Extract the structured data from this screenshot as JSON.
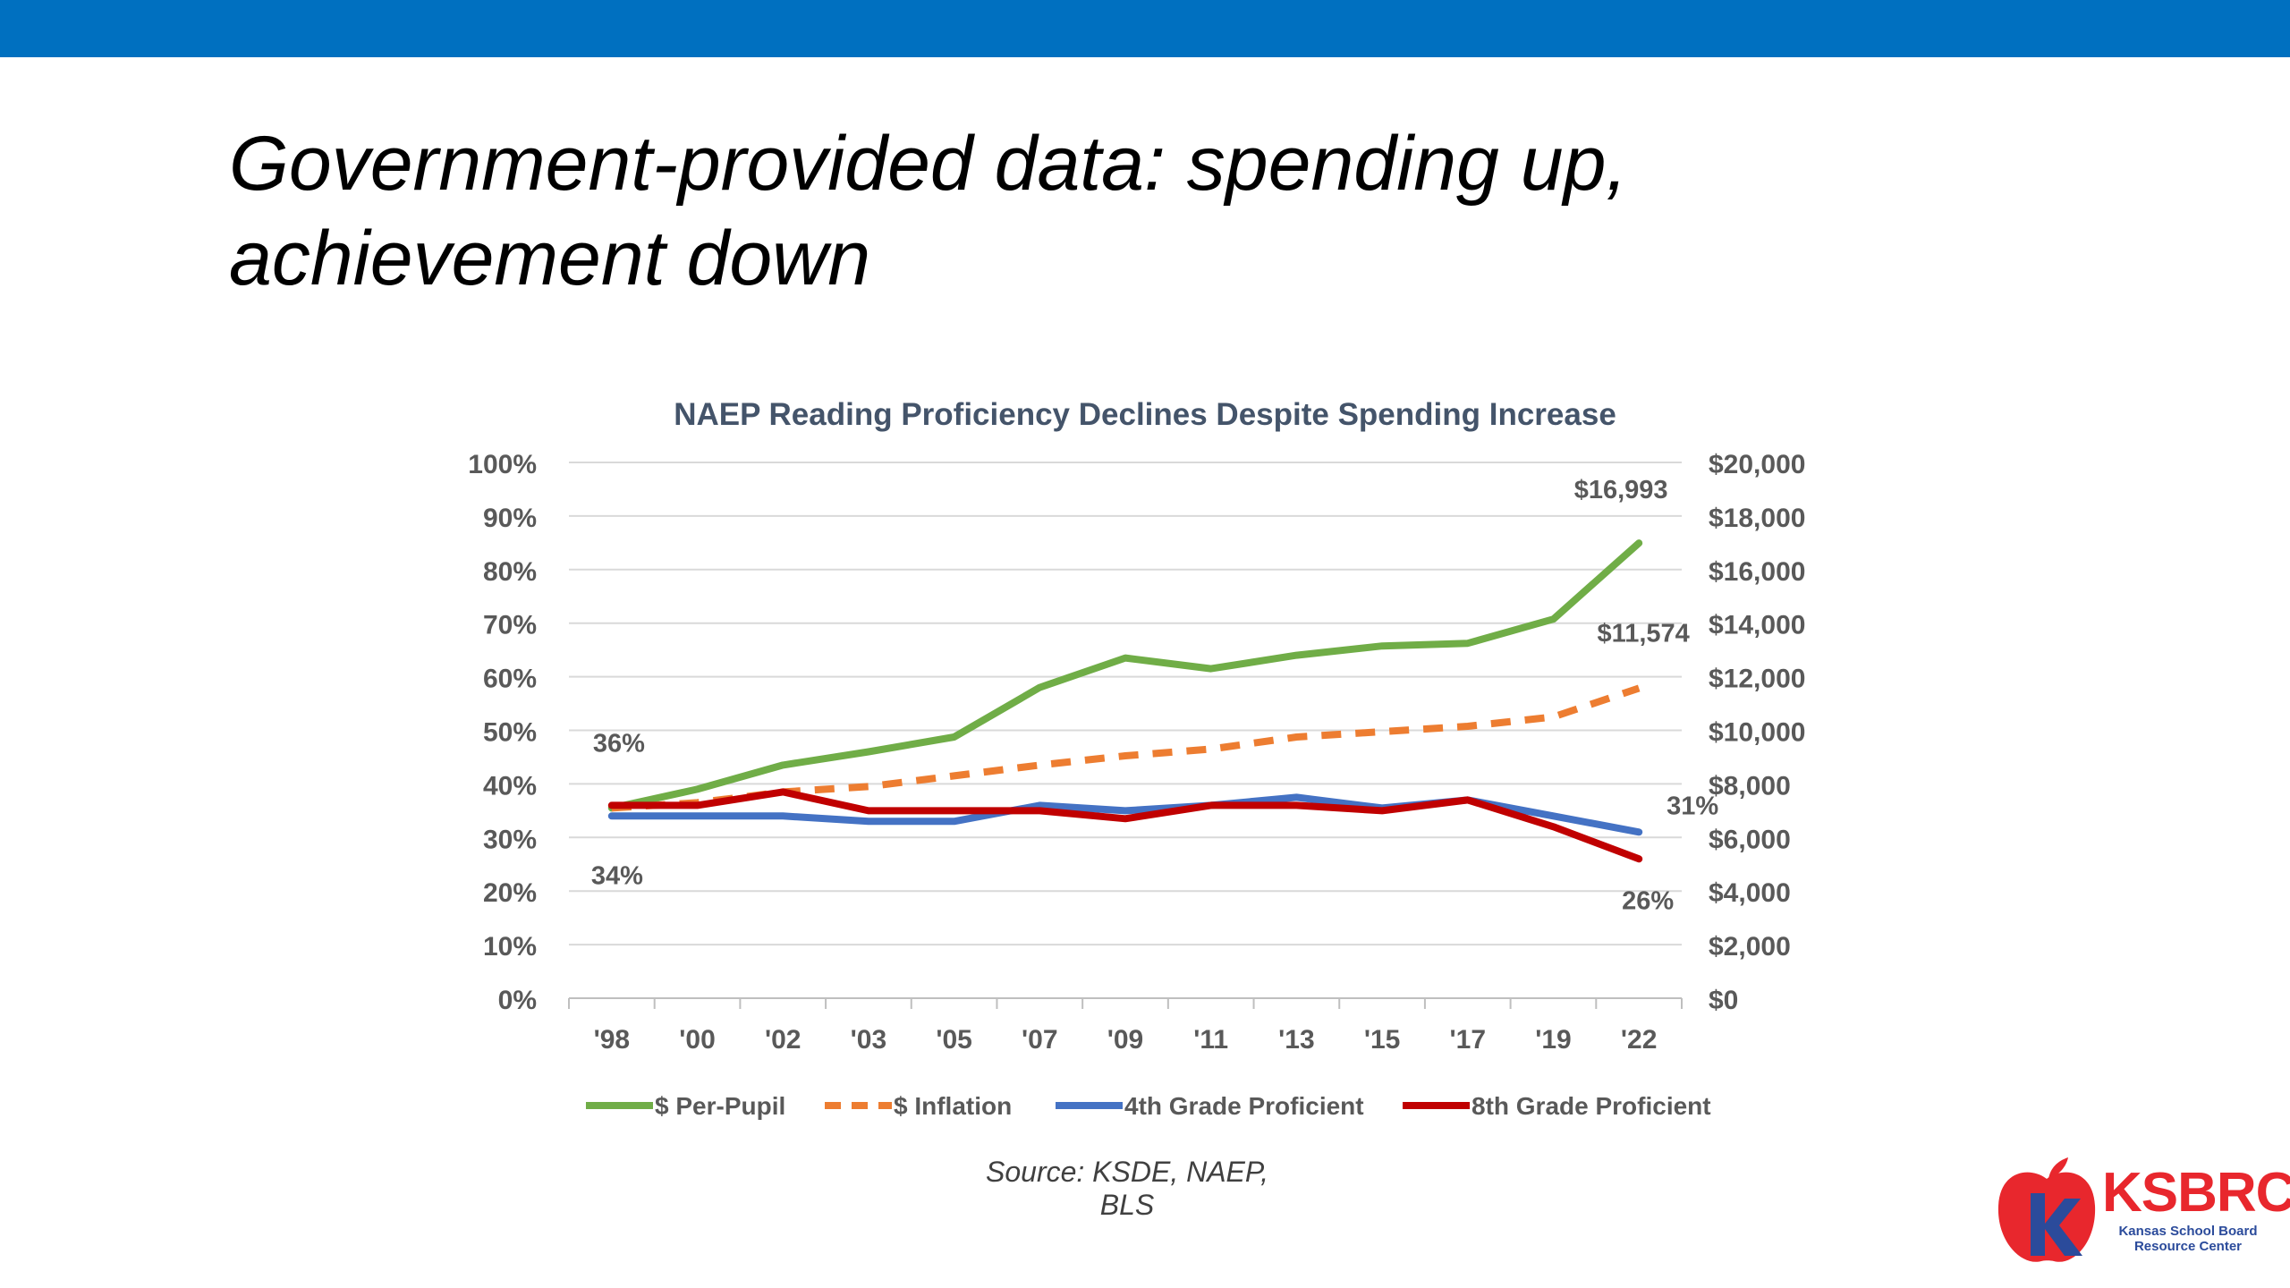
{
  "slide": {
    "title_line1": "Government-provided data: spending up,",
    "title_line2": "achievement down",
    "source": "Source: KSDE, NAEP, BLS",
    "logo_name": "KSBRC",
    "logo_subtitle": "Kansas School Board Resource Center",
    "colors": {
      "top_bar": "#0070c0",
      "logo_red": "#e8272d",
      "logo_blue": "#2b4b9b"
    }
  },
  "chart_data": {
    "type": "line",
    "title": "NAEP Reading Proficiency Declines Despite Spending Increase",
    "categories": [
      "'98",
      "'00",
      "'02",
      "'03",
      "'05",
      "'07",
      "'09",
      "'11",
      "'13",
      "'15",
      "'17",
      "'19",
      "'22"
    ],
    "y_left": {
      "range": [
        0,
        100
      ],
      "ticks": [
        "0%",
        "10%",
        "20%",
        "30%",
        "40%",
        "50%",
        "60%",
        "70%",
        "80%",
        "90%",
        "100%"
      ]
    },
    "y_right": {
      "range": [
        0,
        20000
      ],
      "ticks": [
        "$0",
        "$2,000",
        "$4,000",
        "$6,000",
        "$8,000",
        "$10,000",
        "$12,000",
        "$14,000",
        "$16,000",
        "$18,000",
        "$20,000"
      ]
    },
    "grid": true,
    "legend_position": "bottom",
    "series": [
      {
        "name": "$ Per-Pupil",
        "axis": "right",
        "color": "#70ad47",
        "dashed": false,
        "values": [
          7100,
          7800,
          8700,
          9200,
          9750,
          11600,
          12700,
          12300,
          12800,
          13150,
          13250,
          14150,
          16993
        ]
      },
      {
        "name": "$ Inflation",
        "axis": "right",
        "color": "#ed7d31",
        "dashed": true,
        "values": [
          7100,
          7300,
          7700,
          7900,
          8300,
          8700,
          9050,
          9300,
          9750,
          9950,
          10150,
          10500,
          11574
        ]
      },
      {
        "name": "4th Grade Proficient",
        "axis": "left",
        "color": "#4472c4",
        "dashed": false,
        "values": [
          34,
          34,
          34,
          33,
          33,
          36,
          35,
          36,
          37.5,
          35.5,
          37,
          34,
          31
        ]
      },
      {
        "name": "8th Grade Proficient",
        "axis": "left",
        "color": "#c00000",
        "dashed": false,
        "values": [
          36,
          36,
          38.5,
          35,
          35,
          35,
          33.5,
          36,
          36,
          35,
          37,
          32,
          26
        ]
      }
    ],
    "annotations": [
      {
        "text": "$16,993",
        "series": 0,
        "index": 12
      },
      {
        "text": "$11,574",
        "series": 1,
        "index": 12
      },
      {
        "text": "36%",
        "series": 3,
        "index": 0
      },
      {
        "text": "34%",
        "series": 2,
        "index": 0
      },
      {
        "text": "31%",
        "series": 2,
        "index": 12
      },
      {
        "text": "26%",
        "series": 3,
        "index": 12
      }
    ]
  }
}
